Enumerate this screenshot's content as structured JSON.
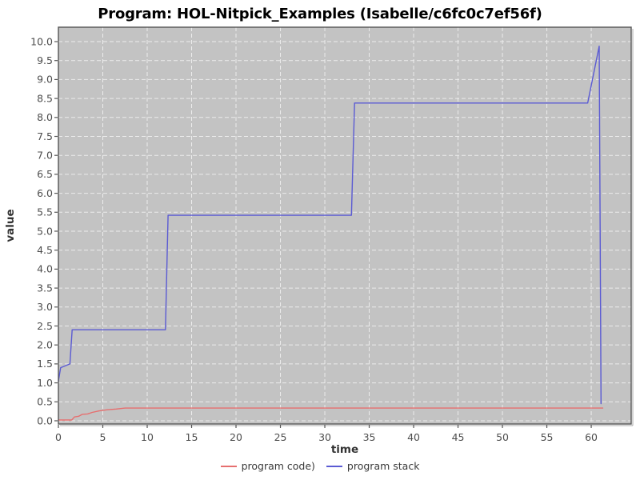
{
  "chart_data": {
    "type": "line",
    "title": "Program: HOL-Nitpick_Examples (Isabelle/c6fc0c7ef56f)",
    "xlabel": "time",
    "ylabel": "value",
    "xlim": [
      0,
      64.5
    ],
    "ylim": [
      -0.085,
      10.38
    ],
    "x_ticks": [
      0,
      5,
      10,
      15,
      20,
      25,
      30,
      35,
      40,
      45,
      50,
      55,
      60
    ],
    "y_ticks": [
      0.0,
      0.5,
      1.0,
      1.5,
      2.0,
      2.5,
      3.0,
      3.5,
      4.0,
      4.5,
      5.0,
      5.5,
      6.0,
      6.5,
      7.0,
      7.5,
      8.0,
      8.5,
      9.0,
      9.5,
      10.0
    ],
    "grid": true,
    "legend_position": "bottom-center",
    "colors": {
      "plot_background": "#c3c3c3",
      "grid_line": "#ececec",
      "plot_border": "#565656",
      "outer_shadow": "#a8a8a8",
      "tick_label": "#4d4d4d",
      "axis_label": "#333333",
      "title_text": "#000000",
      "legend_text": "#3a3a3a"
    },
    "series": [
      {
        "name": "program code)",
        "color": "#e66f6f",
        "points": [
          [
            0,
            0.02
          ],
          [
            1.5,
            0.02
          ],
          [
            1.8,
            0.1
          ],
          [
            2.3,
            0.12
          ],
          [
            2.7,
            0.17
          ],
          [
            3.3,
            0.18
          ],
          [
            3.8,
            0.22
          ],
          [
            4.6,
            0.26
          ],
          [
            5.5,
            0.29
          ],
          [
            6.5,
            0.31
          ],
          [
            7.5,
            0.335
          ],
          [
            61.3,
            0.335
          ]
        ]
      },
      {
        "name": "program stack",
        "color": "#5b5bd3",
        "points": [
          [
            0,
            1.05
          ],
          [
            0.25,
            1.4
          ],
          [
            1.3,
            1.5
          ],
          [
            1.55,
            2.4
          ],
          [
            12.05,
            2.4
          ],
          [
            12.35,
            5.42
          ],
          [
            33.0,
            5.42
          ],
          [
            33.35,
            8.38
          ],
          [
            59.6,
            8.38
          ],
          [
            60.9,
            9.88
          ],
          [
            61.1,
            0.45
          ]
        ]
      }
    ]
  }
}
